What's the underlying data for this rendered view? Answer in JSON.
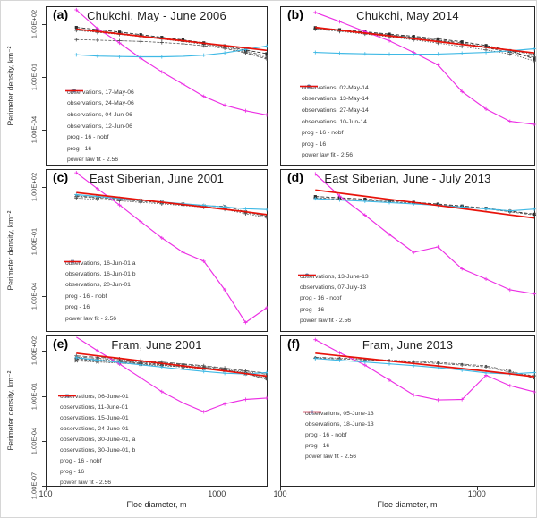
{
  "figure": {
    "x_axis_title": "Floe diameter, m",
    "y_axis_title": "Perimeter density, km⁻²",
    "x_tick_labels": [
      "100",
      "1000"
    ],
    "y_tick_labels_main": [
      "1.00E+02",
      "1.00E-01",
      "1.00E-04"
    ],
    "y_tick_labels_bottom": [
      "1.00E+02",
      "1.00E-01",
      "1.00E-04",
      "1.00E-07"
    ]
  },
  "colors": {
    "observations": "#4d4d4d",
    "observations_dark": "#2e2e2e",
    "nobf": "#ec2fe4",
    "prog": "#3fb9e5",
    "fit": "#e8130a",
    "panel_border": "#262626",
    "text": "#262626"
  },
  "chart_data": [
    {
      "letter": "(a)",
      "title": "Chukchi, May - June 2006",
      "type": "line",
      "x_scale": "log",
      "y_scale": "log",
      "xlim": [
        100,
        2000
      ],
      "ylim": [
        1e-06,
        1000
      ],
      "legend_position": "lower-left",
      "grid": false,
      "x": [
        150,
        200,
        270,
        360,
        480,
        640,
        850,
        1130,
        1500,
        2000
      ],
      "series": [
        {
          "name": "observations, 17-May-06",
          "role": "obs",
          "marker": "plus",
          "dash": "3 1.5",
          "values": [
            14,
            13,
            12,
            11,
            9.5,
            8,
            6.2,
            4.4,
            2.4,
            1.1
          ]
        },
        {
          "name": "observations, 24-May-06",
          "role": "obs",
          "marker": "plus",
          "dash": "1.5 1.5",
          "values": [
            47,
            36,
            27.5,
            20.5,
            15,
            10.8,
            7.5,
            5,
            2.6,
            1.3
          ]
        },
        {
          "name": "observations, 04-Jun-06",
          "role": "obs",
          "marker": "dot",
          "dash": "4 1.5 1 1.5",
          "values": [
            58,
            44,
            32.5,
            23.5,
            17,
            12,
            8.3,
            5.6,
            3,
            1.6
          ]
        },
        {
          "name": "observations, 12-Jun-06",
          "role": "obs-dark",
          "marker": "square",
          "dash": "4 2",
          "values": [
            70,
            52,
            38,
            27,
            19,
            13.5,
            9.2,
            6.2,
            3.5,
            2.2
          ]
        },
        {
          "name": "prog - 16 - nobf",
          "role": "nobf",
          "marker": "plus",
          "dash": "",
          "values": [
            700,
            60,
            9,
            1.2,
            0.2,
            0.04,
            0.008,
            0.0025,
            0.0012,
            0.0007
          ]
        },
        {
          "name": "prog - 16",
          "role": "prog",
          "marker": "plus",
          "dash": "",
          "values": [
            1.9,
            1.6,
            1.5,
            1.45,
            1.45,
            1.55,
            1.8,
            2.4,
            3.8,
            6
          ]
        },
        {
          "name": "power law fit - 2.56",
          "role": "fit",
          "marker": "none",
          "dash": "",
          "values": [
            55,
            40.5,
            29.8,
            21.9,
            16.1,
            11.9,
            8.7,
            6.4,
            4.7,
            3.4
          ]
        }
      ]
    },
    {
      "letter": "(b)",
      "title": "Chukchi, May 2014",
      "type": "line",
      "x_scale": "log",
      "y_scale": "log",
      "xlim": [
        100,
        2000
      ],
      "ylim": [
        1e-06,
        1000
      ],
      "legend_position": "lower-left",
      "grid": false,
      "x": [
        150,
        200,
        270,
        360,
        480,
        640,
        850,
        1130,
        1500,
        2000
      ],
      "series": [
        {
          "name": "observations, 02-May-14",
          "role": "obs",
          "marker": "plus",
          "dash": "3 1.5",
          "values": [
            60,
            46,
            34,
            25,
            18,
            12.5,
            8,
            4.8,
            2.6,
            1.4
          ]
        },
        {
          "name": "observations, 13-May-14",
          "role": "obs",
          "marker": "plus",
          "dash": "1.5 1.5",
          "values": [
            55,
            41,
            29,
            20,
            13.5,
            8.8,
            5.6,
            3.6,
            2.1,
            0.85
          ]
        },
        {
          "name": "observations, 27-May-14",
          "role": "obs",
          "marker": "dot",
          "dash": "4 1.5 1 1.5",
          "values": [
            62,
            47,
            35,
            26,
            19,
            13.5,
            9,
            5.5,
            3.2,
            2
          ]
        },
        {
          "name": "observations, 10-Jun-14",
          "role": "obs-dark",
          "marker": "square",
          "dash": "4 2",
          "values": [
            68,
            52,
            39,
            29,
            21.5,
            15.5,
            10.5,
            6.5,
            3.3,
            1.1
          ]
        },
        {
          "name": "prog - 16 - nobf",
          "role": "nobf",
          "marker": "plus",
          "dash": "",
          "values": [
            500,
            150,
            40,
            12,
            2.6,
            0.5,
            0.015,
            0.0015,
            0.0003,
            0.0002
          ]
        },
        {
          "name": "prog - 16",
          "role": "prog",
          "marker": "plus",
          "dash": "",
          "values": [
            2.6,
            2.3,
            2.15,
            2.05,
            2.05,
            2.1,
            2.3,
            2.6,
            3.2,
            4.2
          ]
        },
        {
          "name": "power law fit - 2.56",
          "role": "fit",
          "marker": "none",
          "dash": "",
          "values": [
            70,
            48,
            33,
            22.7,
            15.6,
            10.7,
            7.4,
            5.1,
            3.5,
            2.4
          ]
        }
      ]
    },
    {
      "letter": "(c)",
      "title": "East Siberian, June 2001",
      "type": "line",
      "x_scale": "log",
      "y_scale": "log",
      "xlim": [
        100,
        2000
      ],
      "ylim": [
        1e-06,
        1000
      ],
      "legend_position": "lower-left",
      "grid": false,
      "x": [
        150,
        200,
        270,
        360,
        480,
        640,
        850,
        1130,
        1500,
        2000
      ],
      "series": [
        {
          "name": "observations, 16-Jun-01 a",
          "role": "obs",
          "marker": "plus",
          "dash": "3 1.5",
          "values": [
            33,
            27,
            22,
            18,
            14.5,
            11.5,
            9,
            7,
            4.2,
            2.6
          ]
        },
        {
          "name": "observations, 16-Jun-01 b",
          "role": "obs",
          "marker": "plus",
          "dash": "1.5 1.5",
          "values": [
            27,
            22.5,
            19,
            15.5,
            12.8,
            10.3,
            8.2,
            6.3,
            3.6,
            2.2
          ]
        },
        {
          "name": "observations, 20-Jun-01",
          "role": "obs",
          "marker": "x",
          "dash": "4 1.5 1 1.5",
          "values": [
            36,
            30,
            24.5,
            20,
            16,
            12.7,
            9.8,
            9.5,
            4.6,
            2.9
          ]
        },
        {
          "name": "prog - 16 - nobf",
          "role": "nobf",
          "marker": "plus",
          "dash": "",
          "values": [
            700,
            90,
            11,
            1.3,
            0.16,
            0.025,
            0.008,
            0.0002,
            3e-06,
            2e-05
          ]
        },
        {
          "name": "prog - 16",
          "role": "prog",
          "marker": "plus",
          "dash": "",
          "values": [
            42,
            33,
            26,
            21,
            16.5,
            13,
            10.5,
            8.5,
            6.8,
            6.2
          ]
        },
        {
          "name": "power law fit - 2.56",
          "role": "fit",
          "marker": "none",
          "dash": "",
          "values": [
            55,
            40.3,
            29.6,
            21.7,
            15.9,
            11.7,
            8.6,
            6.3,
            4.6,
            3.2
          ]
        }
      ]
    },
    {
      "letter": "(d)",
      "title": "East Siberian, June - July 2013",
      "type": "line",
      "x_scale": "log",
      "y_scale": "log",
      "xlim": [
        100,
        2000
      ],
      "ylim": [
        1e-06,
        1000
      ],
      "legend_position": "lower-left",
      "grid": false,
      "x": [
        150,
        200,
        270,
        360,
        480,
        640,
        850,
        1130,
        1500,
        2000
      ],
      "series": [
        {
          "name": "observations, 13-June-13",
          "role": "obs",
          "marker": "plus",
          "dash": "3 1.5",
          "values": [
            28,
            24,
            20.5,
            17,
            14,
            11.2,
            8.8,
            6.7,
            4.6,
            3
          ]
        },
        {
          "name": "observations, 07-July-13",
          "role": "obs-dark",
          "marker": "square",
          "dash": "4 2",
          "values": [
            33,
            28,
            23.5,
            19.5,
            15.8,
            12.5,
            9.7,
            7.3,
            5,
            3.4
          ]
        },
        {
          "name": "prog - 16 - nobf",
          "role": "nobf",
          "marker": "plus",
          "dash": "",
          "values": [
            600,
            35,
            3,
            0.25,
            0.025,
            0.05,
            0.003,
            0.0008,
            0.0002,
            0.00012
          ]
        },
        {
          "name": "prog - 16",
          "role": "prog",
          "marker": "plus",
          "dash": "",
          "values": [
            25,
            21,
            18,
            15.2,
            12.8,
            10.5,
            8.5,
            6.7,
            5.2,
            6.5
          ]
        },
        {
          "name": "power law fit - 2.56",
          "role": "fit",
          "marker": "none",
          "dash": "",
          "values": [
            77,
            51,
            34,
            23,
            15.5,
            10.4,
            7,
            4.7,
            3.1,
            2.1
          ]
        }
      ]
    },
    {
      "letter": "(e)",
      "title": "Fram, June 2001",
      "type": "line",
      "x_scale": "log",
      "y_scale": "log",
      "xlim": [
        100,
        2000
      ],
      "ylim": [
        1e-07,
        1000
      ],
      "legend_position": "lower-left",
      "grid": false,
      "x": [
        150,
        200,
        270,
        360,
        480,
        640,
        850,
        1130,
        1500,
        2000
      ],
      "series": [
        {
          "name": "observations, 06-June-01",
          "role": "obs",
          "marker": "plus",
          "dash": "3 1.5",
          "values": [
            28,
            23,
            18.5,
            15,
            12,
            9.4,
            7.2,
            5.3,
            3.4,
            2.3
          ]
        },
        {
          "name": "observations, 11-June-01",
          "role": "obs",
          "marker": "plus",
          "dash": "1.5 1.5",
          "values": [
            35,
            28.5,
            23,
            18.5,
            14.6,
            11.2,
            8.4,
            6,
            3.7,
            1.9
          ]
        },
        {
          "name": "observations, 15-June-01",
          "role": "obs",
          "marker": "dot",
          "dash": "4 1.5 1 1.5",
          "values": [
            42,
            34,
            27,
            21.5,
            17,
            13,
            9.6,
            6.8,
            4.3,
            2.9
          ]
        },
        {
          "name": "observations, 24-June-01",
          "role": "obs",
          "marker": "x",
          "dash": "2 1",
          "values": [
            23,
            19.5,
            16.2,
            13.4,
            11,
            8.8,
            6.8,
            5,
            3.1,
            1.6
          ]
        },
        {
          "name": "observations, 30-June-01, a",
          "role": "obs",
          "marker": "plus",
          "dash": "5 2",
          "values": [
            50,
            40,
            31.5,
            24.6,
            19,
            14.5,
            10.8,
            7.6,
            5,
            3.5
          ]
        },
        {
          "name": "observations, 30-June-01, b",
          "role": "obs",
          "marker": "dot",
          "dash": "3 1.5",
          "values": [
            31,
            25.5,
            21,
            17,
            13.6,
            10.6,
            8,
            5.7,
            3.3,
            1.3
          ]
        },
        {
          "name": "prog - 16 - nobf",
          "role": "nobf",
          "marker": "plus",
          "dash": "",
          "values": [
            900,
            110,
            14,
            1.7,
            0.2,
            0.035,
            0.009,
            0.03,
            0.06,
            0.075
          ]
        },
        {
          "name": "prog - 16",
          "role": "prog",
          "marker": "plus",
          "dash": "",
          "values": [
            38,
            26,
            18,
            12.5,
            8.8,
            6.2,
            4.5,
            3.4,
            3,
            3.8
          ]
        },
        {
          "name": "power law fit - 2.56",
          "role": "fit",
          "marker": "none",
          "dash": "",
          "values": [
            75,
            50.5,
            34,
            23,
            15.5,
            10.5,
            7.1,
            4.8,
            3.2,
            2.2
          ]
        }
      ]
    },
    {
      "letter": "(f)",
      "title": "Fram, June 2013",
      "type": "line",
      "x_scale": "log",
      "y_scale": "log",
      "xlim": [
        100,
        2000
      ],
      "ylim": [
        1e-07,
        1000
      ],
      "legend_position": "lower-left",
      "grid": false,
      "x": [
        150,
        200,
        270,
        360,
        480,
        640,
        850,
        1130,
        1500,
        2000
      ],
      "series": [
        {
          "name": "observations, 05-June-13",
          "role": "obs",
          "marker": "plus",
          "dash": "3 1.5",
          "values": [
            36,
            31,
            26.5,
            22.5,
            18.8,
            15.3,
            12,
            8.8,
            4,
            2.3
          ]
        },
        {
          "name": "observations, 18-June-13",
          "role": "obs",
          "marker": "dot",
          "dash": "4 1.5 1 1.5",
          "values": [
            40,
            35,
            30,
            25.8,
            21.8,
            18,
            14.2,
            10.5,
            5,
            1.5
          ]
        },
        {
          "name": "prog - 16 - nobf",
          "role": "nobf",
          "marker": "plus",
          "dash": "",
          "values": [
            600,
            80,
            12,
            1.2,
            0.12,
            0.055,
            0.06,
            2.5,
            0.5,
            0.19
          ]
        },
        {
          "name": "prog - 16",
          "role": "prog",
          "marker": "plus",
          "dash": "",
          "values": [
            33,
            25,
            19,
            14.5,
            11,
            8,
            5.5,
            3.6,
            3,
            3.8
          ]
        },
        {
          "name": "power law fit - 2.56",
          "role": "fit",
          "marker": "none",
          "dash": "",
          "values": [
            75,
            50,
            33.5,
            22.6,
            15.3,
            10.4,
            7,
            4.7,
            3.1,
            2
          ]
        }
      ]
    }
  ]
}
